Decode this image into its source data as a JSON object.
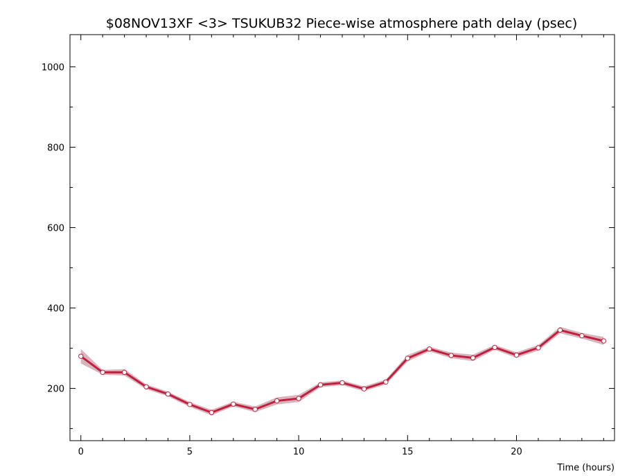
{
  "chart_data": {
    "type": "line",
    "title": "$08NOV13XF <3>  TSUKUB32  Piece-wise atmosphere path delay (psec)",
    "xlabel": "Time (hours)",
    "ylabel": "",
    "xlim": [
      -0.5,
      24.5
    ],
    "ylim": [
      70,
      1080
    ],
    "x_ticks": [
      0,
      5,
      10,
      15,
      20
    ],
    "x_tick_labels": [
      "0",
      "5",
      "10",
      "15",
      "20"
    ],
    "y_ticks": [
      200,
      400,
      600,
      800,
      1000
    ],
    "y_tick_labels": [
      "200",
      "400",
      "600",
      "800",
      "1000"
    ],
    "grid": false,
    "series": [
      {
        "x": [
          0,
          1,
          2,
          3,
          4,
          5,
          6,
          7,
          8,
          9,
          10,
          11,
          12,
          13,
          14,
          15,
          16,
          17,
          18,
          19,
          20,
          21,
          22,
          23,
          24
        ],
        "values": [
          280,
          240,
          240,
          204,
          186,
          160,
          140,
          161,
          148,
          169,
          175,
          209,
          214,
          199,
          216,
          275,
          298,
          282,
          276,
          302,
          283,
          301,
          345,
          331,
          318
        ],
        "error": [
          18,
          6,
          8,
          6,
          6,
          6,
          7,
          6,
          7,
          9,
          9,
          6,
          6,
          6,
          6,
          8,
          6,
          7,
          8,
          6,
          7,
          7,
          8,
          7,
          10
        ]
      }
    ],
    "colors": {
      "line": "#c0203f",
      "band": "#d8b4bc",
      "marker_fill": "#ffffff",
      "marker_stroke": "#c0203f",
      "axis": "#000000"
    }
  }
}
